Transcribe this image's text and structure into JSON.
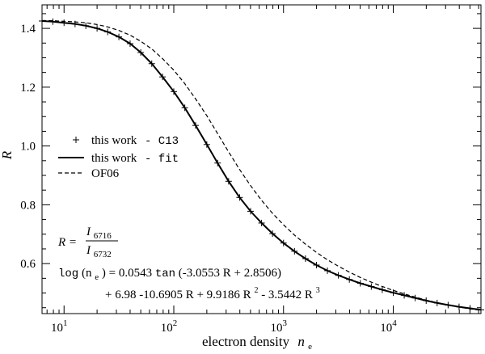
{
  "chart_data": {
    "type": "line",
    "title": "",
    "xlabel": "electron density",
    "xlabel_symbol": "n",
    "xlabel_sub": "e",
    "ylabel": "R",
    "xscale": "log",
    "xlim": [
      6.3,
      63000
    ],
    "ylim": [
      0.43,
      1.48
    ],
    "grid": false,
    "x_ticks": [
      {
        "value": 10,
        "base": "10",
        "exp": "1"
      },
      {
        "value": 100,
        "base": "10",
        "exp": "2"
      },
      {
        "value": 1000,
        "base": "10",
        "exp": "3"
      },
      {
        "value": 10000,
        "base": "10",
        "exp": "4"
      }
    ],
    "y_ticks": [
      {
        "value": 0.6,
        "label": "0.6"
      },
      {
        "value": 0.8,
        "label": "0.8"
      },
      {
        "value": 1.0,
        "label": "1.0"
      },
      {
        "value": 1.2,
        "label": "1.2"
      },
      {
        "value": 1.4,
        "label": "1.4"
      }
    ],
    "legend": {
      "placement": "center-left",
      "entries": [
        {
          "text": "this work",
          "code": "- C13",
          "style": "plus"
        },
        {
          "text": "this work",
          "code": "- fit",
          "style": "solid"
        },
        {
          "text": "OF06",
          "code": "",
          "style": "dashed"
        }
      ]
    },
    "series": [
      {
        "style": "plus",
        "x": [
          6.3,
          7.9,
          10,
          12.6,
          15.8,
          20,
          25,
          31.6,
          40,
          50,
          63,
          79,
          100,
          126,
          158,
          200,
          251,
          316,
          398,
          501,
          631,
          794,
          1000,
          1259,
          1585,
          1995,
          2512,
          3162,
          3981,
          5012,
          6310,
          7943,
          10000,
          12589,
          15849,
          19953,
          25119,
          31623,
          39811,
          50119,
          63000
        ],
        "y": [
          1.425,
          1.423,
          1.419,
          1.415,
          1.409,
          1.4,
          1.388,
          1.371,
          1.348,
          1.318,
          1.28,
          1.235,
          1.185,
          1.13,
          1.07,
          1.005,
          0.942,
          0.88,
          0.825,
          0.778,
          0.738,
          0.702,
          0.67,
          0.642,
          0.617,
          0.595,
          0.576,
          0.56,
          0.546,
          0.533,
          0.522,
          0.511,
          0.501,
          0.492,
          0.483,
          0.474,
          0.466,
          0.459,
          0.453,
          0.448,
          0.443
        ]
      },
      {
        "style": "solid",
        "x": [
          6.3,
          7.9,
          10,
          12.6,
          15.8,
          20,
          25,
          31.6,
          40,
          50,
          63,
          79,
          100,
          126,
          158,
          200,
          251,
          316,
          398,
          501,
          631,
          794,
          1000,
          1259,
          1585,
          1995,
          2512,
          3162,
          3981,
          5012,
          6310,
          7943,
          10000,
          12589,
          15849,
          19953,
          25119,
          31623,
          39811,
          50119,
          63000
        ],
        "y": [
          1.425,
          1.423,
          1.419,
          1.415,
          1.409,
          1.4,
          1.388,
          1.371,
          1.348,
          1.318,
          1.28,
          1.235,
          1.185,
          1.13,
          1.07,
          1.005,
          0.942,
          0.88,
          0.825,
          0.778,
          0.738,
          0.702,
          0.67,
          0.642,
          0.617,
          0.595,
          0.576,
          0.56,
          0.546,
          0.533,
          0.522,
          0.511,
          0.501,
          0.492,
          0.483,
          0.474,
          0.466,
          0.459,
          0.453,
          0.448,
          0.443
        ]
      },
      {
        "style": "dashed",
        "x": [
          6.3,
          7.9,
          10,
          12.6,
          15.8,
          20,
          25,
          31.6,
          40,
          50,
          63,
          79,
          100,
          126,
          158,
          200,
          251,
          316,
          398,
          501,
          631,
          794,
          1000,
          1259,
          1585,
          1995,
          2512,
          3162,
          3981,
          5012,
          6310,
          7943,
          10000,
          12589,
          15849,
          19953,
          25119,
          31623,
          39811,
          50119,
          63000
        ],
        "y": [
          1.427,
          1.426,
          1.424,
          1.422,
          1.419,
          1.413,
          1.405,
          1.393,
          1.377,
          1.356,
          1.33,
          1.297,
          1.258,
          1.212,
          1.16,
          1.103,
          1.042,
          0.98,
          0.92,
          0.865,
          0.815,
          0.771,
          0.732,
          0.697,
          0.666,
          0.638,
          0.613,
          0.591,
          0.571,
          0.553,
          0.537,
          0.522,
          0.509,
          0.497,
          0.486,
          0.476,
          0.467,
          0.459,
          0.452,
          0.446,
          0.441
        ]
      }
    ],
    "annotation": {
      "r_lhs": "R =",
      "numerator": "I",
      "numerator_sub": "6716",
      "denominator": "I",
      "denominator_sub": "6732",
      "eq1_log": "log",
      "eq1_arg": "(n",
      "eq1_arg_sub": "e",
      "eq1_arg_close": ")",
      "eq1_mid": " = 0.0543 ",
      "eq1_tan": "tan",
      "eq1_tail": "(-3.0553 R + 2.8506)",
      "eq2_a": "+ 6.98 -10.6905 R + 9.9186 R",
      "eq2_a_sup": "2",
      "eq2_b": " - 3.5442 R",
      "eq2_b_sup": "3"
    }
  }
}
